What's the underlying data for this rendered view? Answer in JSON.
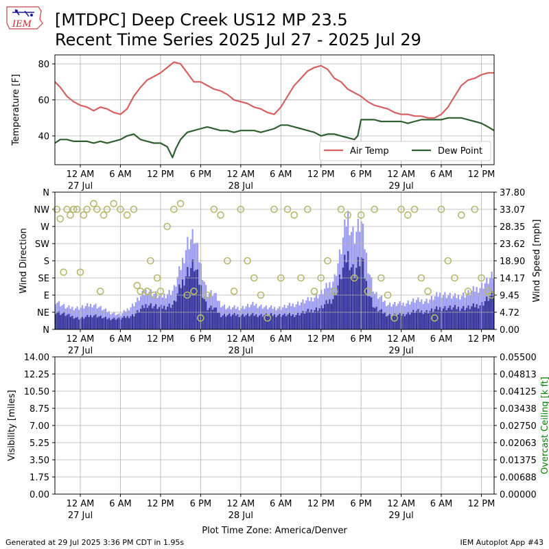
{
  "header": {
    "title_line1": "[MTDPC] Deep Creek US12 MP 23.5",
    "title_line2": "Recent Time Series 2025 Jul 27 - 2025 Jul 29",
    "logo_text": "IEM"
  },
  "footer": {
    "generated": "Generated at 29 Jul 2025 3:36 PM CDT in 1.95s",
    "app": "IEM Autoplot App #43",
    "timezone_label": "Plot Time Zone: America/Denver"
  },
  "colors": {
    "air_temp": "#d65f5f",
    "dew_point": "#2e5e2e",
    "gust": "#9b9bf2",
    "wind_speed": "#36359a",
    "wind_dir": "#b5b86b",
    "ceiling_label": "#008000",
    "grid": "#b0b0b0"
  },
  "chart_data": [
    {
      "type": "line",
      "panel": "temperature",
      "ylabel": "Temperature [F]",
      "ylim": [
        24,
        85
      ],
      "yticks": [
        "40",
        "60",
        "80"
      ],
      "xticks": [
        "12 AM",
        "6 AM",
        "12 PM",
        "6 PM",
        "12 AM",
        "6 AM",
        "12 PM",
        "6 PM",
        "12 AM",
        "6 AM",
        "12 PM"
      ],
      "xdates": [
        "27 Jul",
        "28 Jul",
        "29 Jul"
      ],
      "x_range_hours": [
        -3.8,
        61.9
      ],
      "grid": true,
      "legend_position": "lower-right",
      "series": [
        {
          "name": "Air Temp",
          "x": [
            -3.8,
            -3,
            -2,
            -1,
            0,
            1,
            2,
            3,
            4,
            5,
            6,
            7,
            8,
            9,
            10,
            11,
            12,
            13,
            14,
            15,
            16,
            17,
            18,
            19,
            20,
            21,
            22,
            23,
            24,
            25,
            26,
            27,
            28,
            29,
            30,
            31,
            32,
            33,
            34,
            35,
            36,
            37,
            38,
            39,
            40,
            41,
            42,
            43,
            44,
            45,
            46,
            47,
            48,
            49,
            50,
            51,
            52,
            53,
            54,
            55,
            56,
            57,
            58,
            59,
            60,
            61,
            61.9
          ],
          "y": [
            70,
            67,
            62,
            59,
            57,
            56,
            54,
            56,
            55,
            53,
            52,
            55,
            62,
            67,
            71,
            73,
            75,
            78,
            81,
            80,
            75,
            70,
            70,
            68,
            66,
            65,
            63,
            60,
            59,
            58,
            56,
            55,
            53,
            52,
            56,
            62,
            68,
            72,
            76,
            78,
            79,
            77,
            72,
            70,
            66,
            64,
            62,
            59,
            57,
            56,
            55,
            53,
            52,
            52,
            51,
            51,
            50,
            50,
            52,
            56,
            62,
            68,
            71,
            72,
            74,
            75,
            75
          ]
        },
        {
          "name": "Dew Point",
          "x": [
            -3.8,
            -3,
            -2,
            -1,
            0,
            1,
            2,
            3,
            4,
            5,
            6,
            7,
            8,
            9,
            10,
            11,
            12,
            13,
            13.8,
            14.3,
            15,
            16,
            17,
            18,
            19,
            20,
            21,
            22,
            23,
            24,
            25,
            26,
            27,
            28,
            29,
            30,
            31,
            32,
            33,
            34,
            35,
            36,
            37,
            38,
            39,
            40,
            41,
            41.5,
            42,
            43,
            44,
            45,
            46,
            47,
            48,
            49,
            50,
            51,
            52,
            53,
            54,
            55,
            56,
            57,
            58,
            59,
            60,
            61,
            61.9
          ],
          "y": [
            36,
            38,
            38,
            37,
            37,
            37,
            36,
            37,
            36,
            37,
            38,
            40,
            41,
            38,
            37,
            36,
            36,
            34,
            28,
            33,
            38,
            42,
            43,
            44,
            45,
            44,
            43,
            43,
            42,
            43,
            43,
            43,
            42,
            43,
            44,
            46,
            46,
            45,
            44,
            43,
            42,
            40,
            41,
            41,
            40,
            39,
            38,
            40,
            49,
            49,
            49,
            48,
            48,
            48,
            48,
            47,
            48,
            49,
            49,
            49,
            49,
            50,
            50,
            50,
            49,
            48,
            47,
            45,
            43
          ]
        }
      ]
    },
    {
      "type": "bar",
      "panel": "wind",
      "ylabel_left": "Wind Direction",
      "ylabel_right": "Wind Speed [mph]",
      "direction_ticks": [
        "N",
        "NE",
        "E",
        "SE",
        "S",
        "SW",
        "W",
        "NW",
        "N"
      ],
      "speed_ticks": [
        "0.00",
        "4.72",
        "9.45",
        "14.17",
        "18.90",
        "23.62",
        "28.35",
        "33.07",
        "37.80"
      ],
      "ylim_speed": [
        0,
        37.8
      ],
      "xticks": [
        "12 AM",
        "6 AM",
        "12 PM",
        "6 PM",
        "12 AM",
        "6 AM",
        "12 PM",
        "6 PM",
        "12 AM",
        "6 AM",
        "12 PM"
      ],
      "xdates": [
        "27 Jul",
        "28 Jul",
        "29 Jul"
      ],
      "grid": true,
      "gust_envelope": {
        "x": [
          -3.8,
          -2,
          0,
          2,
          4,
          6,
          8,
          10,
          12,
          14,
          15,
          16,
          17,
          18,
          19,
          20,
          21,
          22,
          24,
          26,
          28,
          30,
          32,
          34,
          36,
          38,
          39,
          40,
          40.5,
          41,
          42,
          43,
          44,
          46,
          48,
          50,
          52,
          54,
          56,
          58,
          60,
          61.9
        ],
        "y": [
          8,
          6,
          6,
          7,
          5,
          4,
          7,
          11,
          9,
          11,
          17,
          24,
          26,
          18,
          10,
          10,
          7,
          6,
          6,
          7,
          6,
          6,
          7,
          8,
          10,
          14,
          22,
          32,
          28,
          26,
          30,
          18,
          10,
          7,
          7,
          8,
          8,
          10,
          9,
          10,
          12,
          15
        ]
      },
      "speed_envelope": {
        "x": [
          -3.8,
          -2,
          0,
          2,
          4,
          6,
          8,
          10,
          12,
          14,
          15,
          16,
          17,
          18,
          19,
          20,
          21,
          22,
          24,
          26,
          28,
          30,
          32,
          34,
          36,
          38,
          39,
          40,
          40.5,
          41,
          42,
          43,
          44,
          46,
          48,
          50,
          52,
          54,
          56,
          58,
          60,
          61.9
        ],
        "y": [
          5,
          4,
          3,
          4,
          3,
          3,
          4,
          7,
          6,
          7,
          12,
          16,
          18,
          12,
          6,
          6,
          4,
          4,
          4,
          4,
          4,
          4,
          4,
          5,
          6,
          9,
          15,
          21,
          18,
          16,
          20,
          11,
          6,
          4,
          4,
          5,
          5,
          6,
          6,
          6,
          7,
          10
        ]
      },
      "direction_points_deg": {
        "x": [
          -3.5,
          -3,
          -2.5,
          -2,
          -1.5,
          -1,
          -0.5,
          0,
          0.5,
          1,
          2,
          2.5,
          3,
          3.5,
          4,
          5,
          6,
          7,
          8,
          8.5,
          9,
          10,
          10.5,
          11,
          11.5,
          12,
          13,
          14,
          15,
          16,
          17,
          18,
          19,
          20,
          21,
          22,
          23,
          24,
          25,
          26,
          27,
          28,
          29,
          30,
          31,
          32,
          33,
          34,
          35,
          36,
          37,
          38,
          39,
          40,
          41,
          42,
          43,
          44,
          45,
          46,
          47,
          48,
          49,
          50,
          51,
          52,
          53,
          54,
          55,
          56,
          57,
          58,
          59,
          60,
          61,
          61.5
        ],
        "y": [
          315,
          290,
          150,
          315,
          300,
          315,
          315,
          150,
          300,
          315,
          330,
          315,
          100,
          300,
          315,
          330,
          315,
          300,
          315,
          115,
          100,
          100,
          180,
          90,
          135,
          100,
          270,
          315,
          330,
          90,
          100,
          30,
          90,
          315,
          300,
          180,
          100,
          315,
          180,
          135,
          90,
          30,
          315,
          135,
          315,
          300,
          135,
          315,
          100,
          135,
          180,
          100,
          315,
          300,
          135,
          300,
          100,
          315,
          135,
          90,
          30,
          315,
          300,
          315,
          135,
          100,
          30,
          315,
          180,
          135,
          300,
          100,
          315,
          135,
          100,
          90
        ]
      }
    },
    {
      "type": "line",
      "panel": "visibility",
      "ylabel_left": "Visibility [miles]",
      "ylabel_right": "Overcast Ceiling [k ft]",
      "visibility_ticks": [
        "0.00",
        "1.75",
        "3.50",
        "5.25",
        "7.00",
        "8.75",
        "10.50",
        "12.25",
        "14.00"
      ],
      "ceiling_ticks": [
        "0.00000",
        "0.00688",
        "0.01375",
        "0.02063",
        "0.02750",
        "0.03438",
        "0.04125",
        "0.04813",
        "0.05500"
      ],
      "ylim_visibility": [
        0,
        14
      ],
      "ylim_ceiling": [
        0,
        0.055
      ],
      "xticks": [
        "12 AM",
        "6 AM",
        "12 PM",
        "6 PM",
        "12 AM",
        "6 AM",
        "12 PM",
        "6 PM",
        "12 AM",
        "6 AM",
        "12 PM"
      ],
      "xdates": [
        "27 Jul",
        "28 Jul",
        "29 Jul"
      ],
      "xlabel": "Plot Time Zone: America/Denver",
      "grid": true,
      "series": []
    }
  ]
}
